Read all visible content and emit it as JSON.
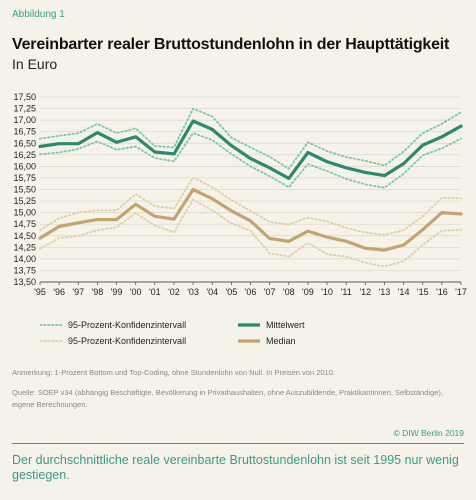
{
  "header": {
    "figure_label": "Abbildung 1",
    "title": "Vereinbarter realer Bruttostundenlohn in der Haupttätigkeit",
    "subtitle": "In Euro"
  },
  "legend": {
    "ci_mean_label": "95-Prozent-Konfidenzintervall",
    "ci_median_label": "95-Prozent-Konfidenzintervall",
    "mean_label": "Mittelwert",
    "median_label": "Median"
  },
  "footer": {
    "note": "Anmerkung: 1-Prozent Bottom und Top-Coding, ohne Stundenlohn von Null. In Preisen von 2010.",
    "source": "Quelle: SOEP v34 (abhängig Beschäftigte, Bevölkerung in Privathaushalten, ohne Auszubildende, Praktikantinnen, Selbständige), eigene Berechnungen.",
    "copyright": "© DIW Berlin 2019",
    "takeaway": "Der durchschnittliche reale vereinbarte Bruttostundenlohn ist seit 1995 nur wenig gestiegen."
  },
  "colors": {
    "mean": "#2b8a6e",
    "mean_ci": "#7cc7a6",
    "median": "#c2a56e",
    "median_ci": "#ddd0a8",
    "grid": "#d8d6cc",
    "accent": "#3b9a85"
  },
  "chart_data": {
    "type": "line",
    "title": "Vereinbarter realer Bruttostundenlohn in der Haupttätigkeit",
    "subtitle": "In Euro",
    "x": [
      1995,
      1996,
      1997,
      1998,
      1999,
      2000,
      2001,
      2002,
      2003,
      2004,
      2005,
      2006,
      2007,
      2008,
      2009,
      2010,
      2011,
      2012,
      2013,
      2014,
      2015,
      2016,
      2017
    ],
    "x_tick_labels": [
      "'95",
      "'96",
      "'97",
      "'98",
      "'99",
      "'00",
      "'01",
      "'02",
      "'03",
      "'04",
      "'05",
      "'06",
      "'07",
      "'08",
      "'09",
      "'10",
      "'11",
      "'12",
      "'13",
      "'14",
      "'15",
      "'16",
      "'17"
    ],
    "ylim": [
      13.5,
      17.5
    ],
    "y_ticks": [
      13.5,
      13.75,
      14.0,
      14.25,
      14.5,
      14.75,
      15.0,
      15.25,
      15.5,
      15.75,
      16.0,
      16.25,
      16.5,
      16.75,
      17.0,
      17.25,
      17.5
    ],
    "y_tick_labels": [
      "13,50",
      "13,75",
      "14,00",
      "14,25",
      "14,50",
      "14,75",
      "15,00",
      "15,25",
      "15,50",
      "15,75",
      "16,00",
      "16,25",
      "16,50",
      "16,75",
      "17,00",
      "17,25",
      "17,50"
    ],
    "grid": true,
    "legend_position": "bottom",
    "series": [
      {
        "name": "Mittelwert",
        "style": "solid",
        "color_key": "mean",
        "values": [
          16.43,
          16.49,
          16.49,
          16.73,
          16.52,
          16.64,
          16.31,
          16.27,
          16.98,
          16.8,
          16.45,
          16.17,
          15.97,
          15.74,
          16.3,
          16.1,
          15.97,
          15.87,
          15.8,
          16.06,
          16.46,
          16.64,
          16.87
        ]
      },
      {
        "name": "95-Prozent-Konfidenzintervall",
        "style": "dotted",
        "color_key": "mean_ci",
        "values": [
          16.6,
          16.66,
          16.72,
          16.92,
          16.72,
          16.82,
          16.44,
          16.41,
          17.25,
          17.08,
          16.62,
          16.41,
          16.21,
          15.95,
          16.52,
          16.33,
          16.2,
          16.12,
          16.02,
          16.32,
          16.72,
          16.92,
          17.17
        ]
      },
      {
        "name": "95-Prozent-Konfidenzintervall",
        "style": "dotted",
        "color_key": "mean_ci",
        "values": [
          16.26,
          16.3,
          16.38,
          16.54,
          16.36,
          16.43,
          16.18,
          16.11,
          16.72,
          16.57,
          16.27,
          16.0,
          15.79,
          15.55,
          16.05,
          15.9,
          15.73,
          15.61,
          15.54,
          15.84,
          16.24,
          16.39,
          16.6
        ]
      },
      {
        "name": "Median",
        "style": "solid",
        "color_key": "median",
        "values": [
          14.45,
          14.7,
          14.78,
          14.85,
          14.85,
          15.18,
          14.92,
          14.86,
          15.5,
          15.3,
          15.04,
          14.82,
          14.44,
          14.38,
          14.6,
          14.47,
          14.38,
          14.23,
          14.19,
          14.3,
          14.63,
          15.0,
          14.97
        ]
      },
      {
        "name": "95-Prozent-Konfidenzintervall",
        "style": "dotted",
        "color_key": "median_ci",
        "values": [
          14.62,
          14.88,
          15.0,
          15.05,
          15.05,
          15.4,
          15.14,
          15.09,
          15.76,
          15.55,
          15.27,
          15.04,
          14.8,
          14.74,
          14.89,
          14.81,
          14.67,
          14.57,
          14.52,
          14.62,
          14.92,
          15.32,
          15.31
        ]
      },
      {
        "name": "95-Prozent-Konfidenzintervall",
        "style": "dotted",
        "color_key": "median_ci",
        "values": [
          14.22,
          14.45,
          14.5,
          14.62,
          14.68,
          14.99,
          14.72,
          14.58,
          15.28,
          15.05,
          14.77,
          14.61,
          14.12,
          14.05,
          14.35,
          14.1,
          14.05,
          13.92,
          13.83,
          13.95,
          14.3,
          14.61,
          14.63
        ]
      }
    ]
  }
}
